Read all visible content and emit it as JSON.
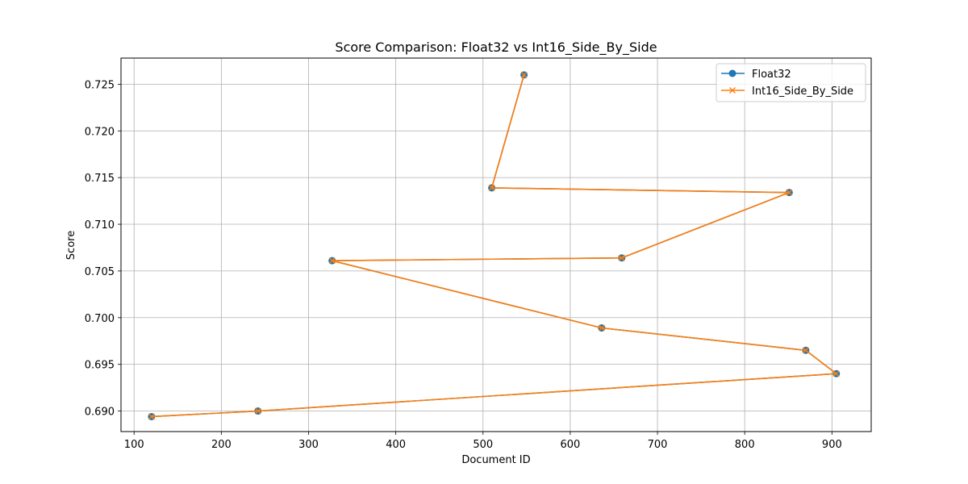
{
  "chart_data": {
    "type": "line",
    "title": "Score Comparison: Float32 vs Int16_Side_By_Side",
    "xlabel": "Document ID",
    "ylabel": "Score",
    "xlim": [
      85,
      945
    ],
    "ylim": [
      0.6878,
      0.7278
    ],
    "xticks": [
      100,
      200,
      300,
      400,
      500,
      600,
      700,
      800,
      900
    ],
    "yticks": [
      0.69,
      0.695,
      0.7,
      0.705,
      0.71,
      0.715,
      0.72,
      0.725
    ],
    "xtick_labels": [
      "100",
      "200",
      "300",
      "400",
      "500",
      "600",
      "700",
      "800",
      "900"
    ],
    "ytick_labels": [
      "0.690",
      "0.695",
      "0.700",
      "0.705",
      "0.710",
      "0.715",
      "0.720",
      "0.725"
    ],
    "grid": true,
    "legend_position": "top-right",
    "series": [
      {
        "name": "Float32",
        "marker": "circle",
        "color": "#1f77b4",
        "x": [
          547,
          510,
          851,
          659,
          327,
          636,
          870,
          905,
          242,
          120
        ],
        "y": [
          0.726,
          0.7139,
          0.7134,
          0.7064,
          0.7061,
          0.6989,
          0.6965,
          0.694,
          0.69,
          0.6894
        ]
      },
      {
        "name": "Int16_Side_By_Side",
        "marker": "x",
        "color": "#ff7f0e",
        "x": [
          547,
          510,
          851,
          659,
          327,
          636,
          870,
          905,
          242,
          120
        ],
        "y": [
          0.726,
          0.7139,
          0.7134,
          0.7064,
          0.7061,
          0.6989,
          0.6965,
          0.694,
          0.69,
          0.6894
        ]
      }
    ]
  }
}
